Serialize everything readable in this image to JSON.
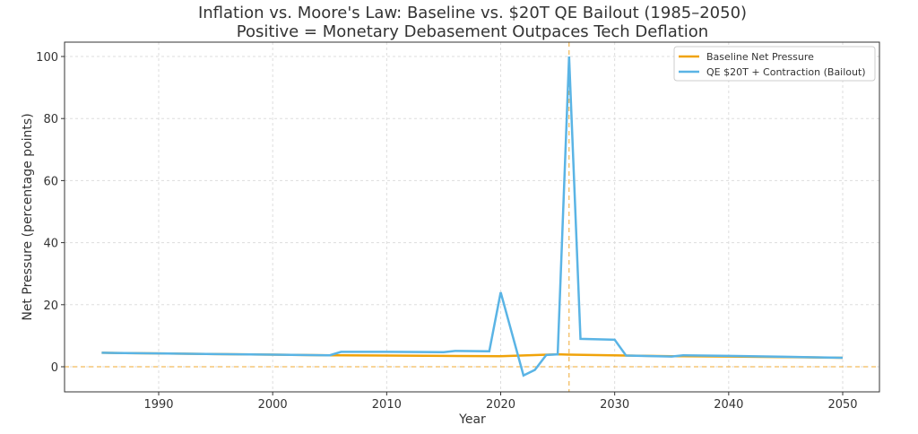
{
  "chart_data": {
    "type": "line",
    "title": "Inflation vs. Moore's Law: Baseline vs. $20T QE Bailout (1985–2050)",
    "subtitle": "Positive = Monetary Debasement Outpaces Tech Deflation",
    "xlabel": "Year",
    "ylabel": "Net Pressure (percentage points)",
    "xlim": [
      1981.7,
      2053.2
    ],
    "ylim": [
      -8,
      105
    ],
    "xticks": [
      1990,
      2000,
      2010,
      2020,
      2030,
      2040,
      2050
    ],
    "yticks": [
      0,
      20,
      40,
      60,
      80,
      100
    ],
    "grid": true,
    "legend_position": "top-right",
    "reference_lines": {
      "x": 2026,
      "y": 0,
      "color": "#f0a830"
    },
    "series": [
      {
        "name": "Baseline Net Pressure",
        "color": "#f0a30a",
        "x": [
          1985,
          1990,
          1995,
          2000,
          2005,
          2010,
          2015,
          2020,
          2025,
          2026,
          2031,
          2035,
          2040,
          2045,
          2050
        ],
        "y": [
          4.5,
          4.3,
          4.1,
          3.9,
          3.7,
          3.6,
          3.5,
          3.4,
          4.0,
          3.9,
          3.6,
          3.4,
          3.3,
          3.1,
          2.9
        ]
      },
      {
        "name": "QE $20T + Contraction (Bailout)",
        "color": "#5ab4e5",
        "x": [
          1985,
          1990,
          1995,
          2000,
          2005,
          2006,
          2010,
          2015,
          2016,
          2019,
          2020,
          2022,
          2023,
          2024,
          2025,
          2026,
          2027,
          2030,
          2031,
          2035,
          2036,
          2040,
          2045,
          2050
        ],
        "y": [
          4.5,
          4.3,
          4.1,
          3.9,
          3.7,
          4.8,
          4.8,
          4.7,
          5.1,
          5.0,
          24,
          -2.8,
          -1,
          3.8,
          4.0,
          100,
          9,
          8.7,
          3.6,
          3.3,
          3.7,
          3.5,
          3.2,
          2.9
        ]
      }
    ]
  }
}
